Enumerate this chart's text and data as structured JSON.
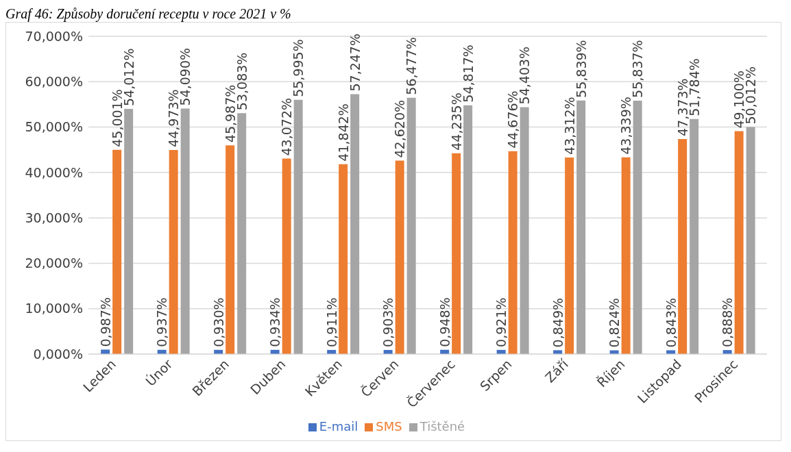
{
  "chart_data": {
    "type": "bar",
    "title": "Graf 46: Způsoby doručení receptu v roce 2021 v %",
    "categories": [
      "Leden",
      "Únor",
      "Březen",
      "Duben",
      "Květen",
      "Červen",
      "Červenec",
      "Srpen",
      "Září",
      "Říjen",
      "Listopad",
      "Prosinec"
    ],
    "series": [
      {
        "name": "E-mail",
        "color": "#4472c4",
        "values": [
          0.987,
          0.937,
          0.93,
          0.934,
          0.911,
          0.903,
          0.948,
          0.921,
          0.849,
          0.824,
          0.843,
          0.888
        ],
        "value_labels": [
          "0,987%",
          "0,937%",
          "0,930%",
          "0,934%",
          "0,911%",
          "0,903%",
          "0,948%",
          "0,921%",
          "0,849%",
          "0,824%",
          "0,843%",
          "0,888%"
        ]
      },
      {
        "name": "SMS",
        "color": "#ed7d31",
        "values": [
          45.001,
          44.973,
          45.987,
          43.072,
          41.842,
          42.62,
          44.235,
          44.676,
          43.312,
          43.339,
          47.373,
          49.1
        ],
        "value_labels": [
          "45,001%",
          "44,973%",
          "45,987%",
          "43,072%",
          "41,842%",
          "42,620%",
          "44,235%",
          "44,676%",
          "43,312%",
          "43,339%",
          "47,373%",
          "49,100%"
        ]
      },
      {
        "name": "Tištěné",
        "color": "#a5a5a5",
        "values": [
          54.012,
          54.09,
          53.083,
          55.995,
          57.247,
          56.477,
          54.817,
          54.403,
          55.839,
          55.837,
          51.784,
          50.012
        ],
        "value_labels": [
          "54,012%",
          "54,090%",
          "53,083%",
          "55,995%",
          "57,247%",
          "56,477%",
          "54,817%",
          "54,403%",
          "55,839%",
          "55,837%",
          "51,784%",
          "50,012%"
        ]
      }
    ],
    "ylim": [
      0,
      70
    ],
    "yticks": [
      {
        "value": 0,
        "label": "0,000%"
      },
      {
        "value": 10,
        "label": "10,000%"
      },
      {
        "value": 20,
        "label": "20,000%"
      },
      {
        "value": 30,
        "label": "30,000%"
      },
      {
        "value": 40,
        "label": "40,000%"
      },
      {
        "value": 50,
        "label": "50,000%"
      },
      {
        "value": 60,
        "label": "60,000%"
      },
      {
        "value": 70,
        "label": "70,000%"
      }
    ],
    "grid": "y",
    "legend": "bottom"
  }
}
